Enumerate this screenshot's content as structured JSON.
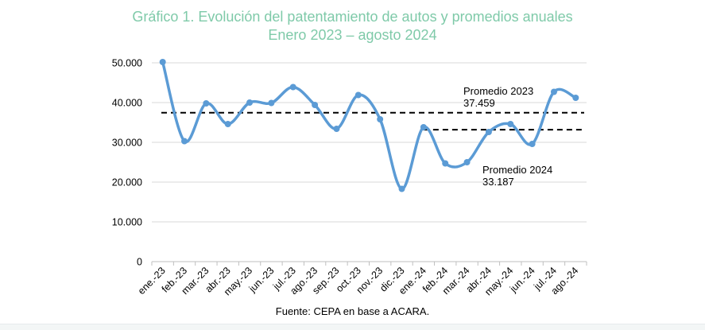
{
  "chart_data": {
    "type": "line",
    "title": "Gráfico 1. Evolución del patentamiento de autos y promedios anuales",
    "subtitle": "Enero 2023 – agosto 2024",
    "xlabel": "",
    "ylabel": "",
    "categories": [
      "ene.-23",
      "feb.-23",
      "mar.-23",
      "abr.-23",
      "may.-23",
      "jun.-23",
      "jul.-23",
      "ago.-23",
      "sep.-23",
      "oct.-23",
      "nov.-23",
      "dic.-23",
      "ene.-24",
      "feb.-24",
      "mar.-24",
      "abr.-24",
      "may.-24",
      "jun.-24",
      "jul.-24",
      "ago.-24"
    ],
    "series": [
      {
        "values": [
          50200,
          30300,
          39800,
          34600,
          40000,
          39900,
          43900,
          39400,
          33400,
          41900,
          35800,
          18300,
          33800,
          24700,
          25000,
          32600,
          34600,
          29600,
          42700,
          41200
        ],
        "color": "#5b9bd5"
      }
    ],
    "ylim": [
      0,
      50000
    ],
    "yticks": [
      0,
      10000,
      20000,
      30000,
      40000,
      50000
    ],
    "ytick_labels": [
      "0",
      "10.000",
      "20.000",
      "30.000",
      "40.000",
      "50.000"
    ],
    "grid": true,
    "reference_lines": [
      {
        "label": "Promedio 2023",
        "value_label": "37.459",
        "value": 37459,
        "from": "ene.-23",
        "to": "ago.-24"
      },
      {
        "label": "Promedio 2024",
        "value_label": "33.187",
        "value": 33187,
        "from": "ene.-24",
        "to": "ago.-24"
      }
    ],
    "source": "Fuente: CEPA en base a ACARA."
  },
  "colors": {
    "title": "#7fcaa9",
    "line": "#5b9bd5",
    "grid": "#d9d9d9"
  }
}
